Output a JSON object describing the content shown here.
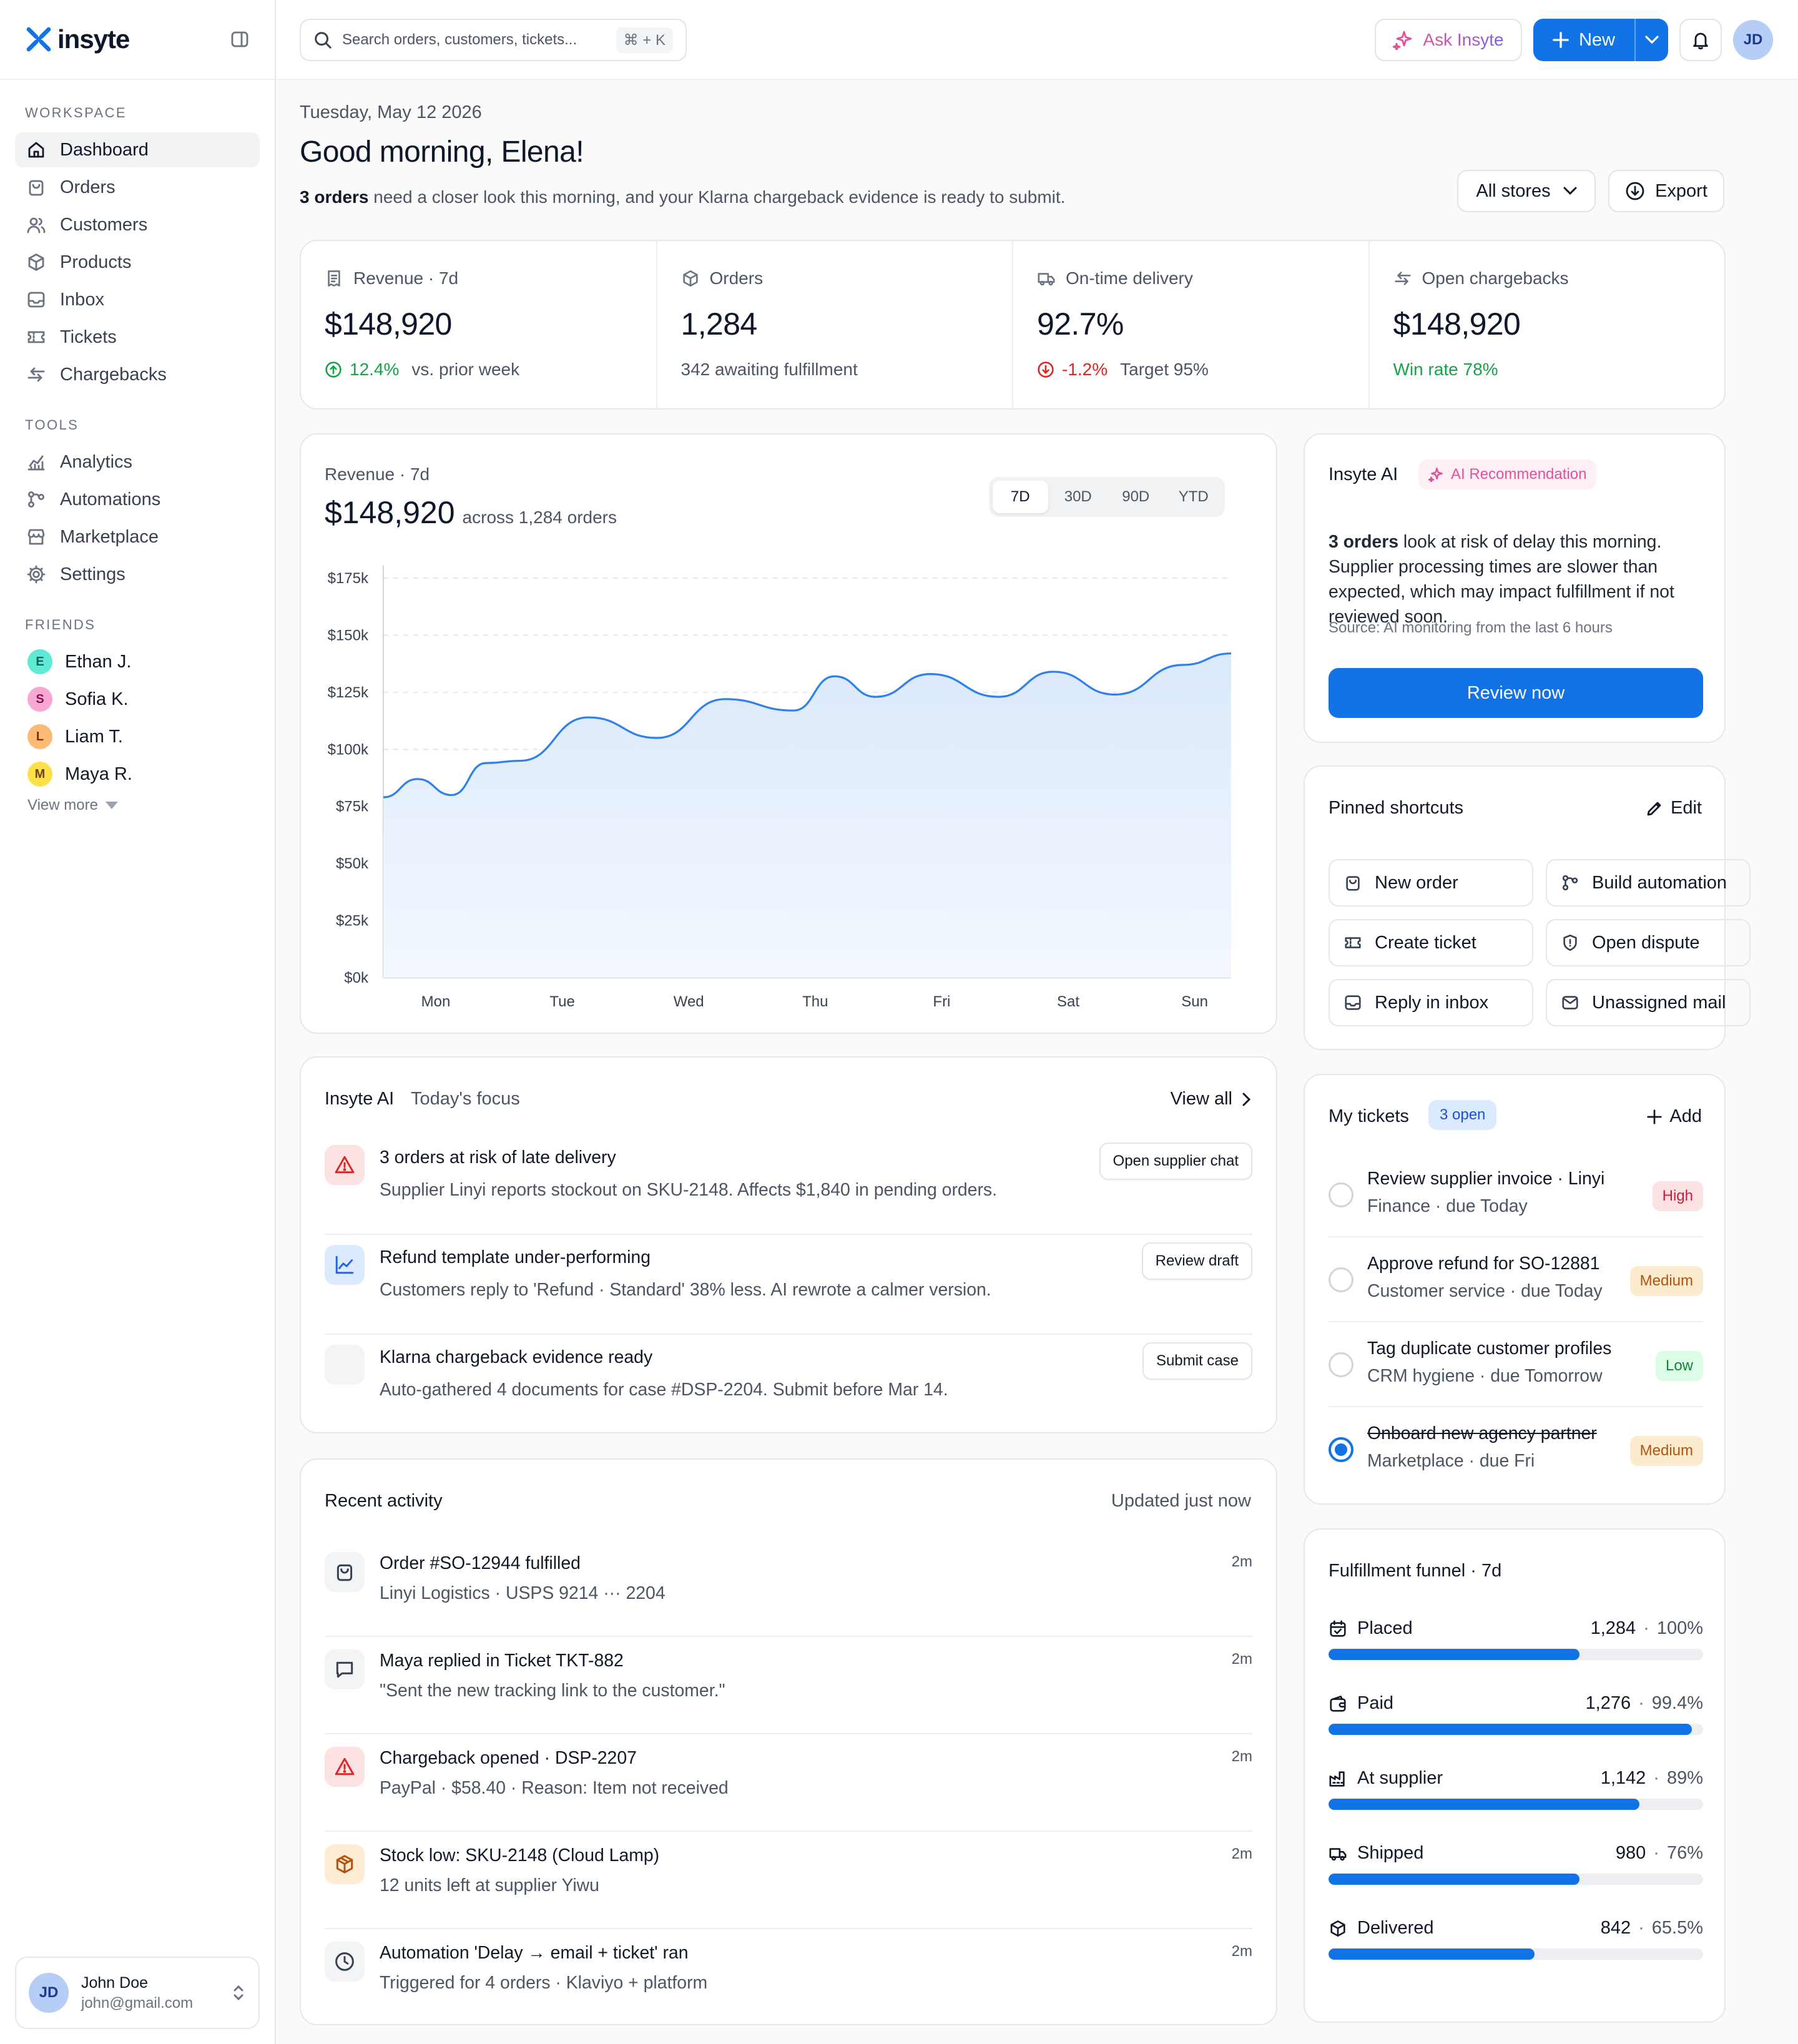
{
  "brand": {
    "name": "insyte"
  },
  "sidebar": {
    "workspace_label": "WORKSPACE",
    "workspace_items": [
      {
        "label": "Dashboard",
        "icon": "home-icon",
        "active": true
      },
      {
        "label": "Orders",
        "icon": "bag-icon"
      },
      {
        "label": "Customers",
        "icon": "users-icon"
      },
      {
        "label": "Products",
        "icon": "box-icon"
      },
      {
        "label": "Inbox",
        "icon": "inbox-icon"
      },
      {
        "label": "Tickets",
        "icon": "ticket-icon"
      },
      {
        "label": "Chargebacks",
        "icon": "return-icon"
      }
    ],
    "tools_label": "TOOLS",
    "tools_items": [
      {
        "label": "Analytics",
        "icon": "analytics-icon"
      },
      {
        "label": "Automations",
        "icon": "workflow-icon"
      },
      {
        "label": "Marketplace",
        "icon": "store-icon"
      },
      {
        "label": "Settings",
        "icon": "gear-icon"
      }
    ],
    "friends_label": "FRIENDS",
    "friends": [
      {
        "initial": "E",
        "name": "Ethan J.",
        "bg": "#5eead4",
        "fg": "#0f5f55"
      },
      {
        "initial": "S",
        "name": "Sofia K.",
        "bg": "#f9a8d4",
        "fg": "#86124f"
      },
      {
        "initial": "L",
        "name": "Liam T.",
        "bg": "#fdba74",
        "fg": "#7c2d12"
      },
      {
        "initial": "M",
        "name": "Maya R.",
        "bg": "#fde047",
        "fg": "#713f12"
      }
    ],
    "view_more": "View more",
    "user": {
      "initials": "JD",
      "name": "John Doe",
      "email": "john@gmail.com"
    }
  },
  "topbar": {
    "search_placeholder": "Search orders, customers, tickets...",
    "shortcut": "⌘ + K",
    "ask_label": "Ask Insyte",
    "new_label": "New",
    "avatar_initials": "JD"
  },
  "header": {
    "date": "Tuesday, May 12 2026",
    "greeting": "Good morning, Elena!",
    "subtitle_bold": "3 orders",
    "subtitle_rest": " need a closer look this morning, and your Klarna chargeback evidence is ready to submit.",
    "stores_label": "All stores",
    "export_label": "Export"
  },
  "kpis": [
    {
      "label": "Revenue · 7d",
      "icon": "receipt-icon",
      "value": "$148,920",
      "delta": "12.4%",
      "delta_dir": "up",
      "note": "vs. prior week"
    },
    {
      "label": "Orders",
      "icon": "box-icon",
      "value": "1,284",
      "note": "342 awaiting fulfillment"
    },
    {
      "label": "On-time delivery",
      "icon": "truck-icon",
      "value": "92.7%",
      "delta": "-1.2%",
      "delta_dir": "down",
      "note": "Target 95%"
    },
    {
      "label": "Open chargebacks",
      "icon": "return-icon",
      "value": "$148,920",
      "highlight": "Win rate 78%"
    }
  ],
  "revenue_chart": {
    "label": "Revenue · 7d",
    "value": "$148,920",
    "value_note": "across 1,284 orders",
    "ranges": [
      "7D",
      "30D",
      "90D",
      "YTD"
    ],
    "active_range": "7D"
  },
  "chart_data": {
    "type": "area",
    "title": "Revenue · 7d",
    "categories": [
      "Mon",
      "Tue",
      "Wed",
      "Thu",
      "Fri",
      "Sat",
      "Sun"
    ],
    "y_tick_labels": [
      "$0k",
      "$25k",
      "$50k",
      "$75k",
      "$100k",
      "$125k",
      "$150k",
      "$175k"
    ],
    "ylim": [
      0,
      175000
    ],
    "grid": true,
    "series": [
      {
        "x": [
          0,
          0.25,
          0.5,
          0.75,
          1,
          1.5,
          2,
          2.5,
          3,
          3.3,
          3.6,
          4,
          4.5,
          4.9,
          5.35,
          5.85,
          6.2
        ],
        "values": [
          79000,
          87000,
          80000,
          94000,
          95000,
          114000,
          105000,
          122000,
          117000,
          132000,
          123000,
          133000,
          123000,
          134000,
          124000,
          137000,
          142000
        ]
      }
    ],
    "color": "#2f80ed",
    "fill": "#e8f1fd"
  },
  "ai_card": {
    "title": "Insyte AI",
    "badge": "AI Recommendation",
    "text_bold": "3 orders",
    "text_rest": " look at risk of delay this morning. Supplier processing times are slower than expected, which may impact fulfillment if not reviewed soon.",
    "source": "Source: AI monitoring from the last 6 hours",
    "button": "Review now"
  },
  "pinned": {
    "title": "Pinned shortcuts",
    "edit": "Edit",
    "items": [
      {
        "label": "New order",
        "icon": "bag-icon"
      },
      {
        "label": "Build automation",
        "icon": "workflow-icon"
      },
      {
        "label": "Create ticket",
        "icon": "ticket-icon"
      },
      {
        "label": "Open dispute",
        "icon": "shield-icon"
      },
      {
        "label": "Reply in inbox",
        "icon": "inbox-icon"
      },
      {
        "label": "Unassigned mail",
        "icon": "mail-icon"
      }
    ]
  },
  "tickets": {
    "title": "My tickets",
    "count": "3 open",
    "add": "Add",
    "items": [
      {
        "title": "Review supplier invoice · Linyi",
        "meta": "Finance · due Today",
        "priority": "High",
        "done": false
      },
      {
        "title": "Approve refund for SO-12881",
        "meta": "Customer service · due Today",
        "priority": "Medium",
        "done": false
      },
      {
        "title": "Tag duplicate customer profiles",
        "meta": "CRM hygiene · due Tomorrow",
        "priority": "Low",
        "done": false
      },
      {
        "title": "Onboard new agency partner",
        "meta": "Marketplace · due Fri",
        "priority": "Medium",
        "done": true
      }
    ],
    "priority_colors": {
      "High": {
        "bg": "#fde2e4",
        "fg": "#c81e3c"
      },
      "Medium": {
        "bg": "#fdebd0",
        "fg": "#b45309"
      },
      "Low": {
        "bg": "#dcfce7",
        "fg": "#15803d"
      }
    }
  },
  "funnel": {
    "title": "Fulfillment funnel · 7d",
    "stages": [
      {
        "label": "Placed",
        "icon": "calendar-check-icon",
        "count": "1,284",
        "pct": "100%",
        "fill_fraction": 0.67
      },
      {
        "label": "Paid",
        "icon": "wallet-icon",
        "count": "1,276",
        "pct": "99.4%",
        "fill_fraction": 0.97
      },
      {
        "label": "At supplier",
        "icon": "factory-icon",
        "count": "1,142",
        "pct": "89%",
        "fill_fraction": 0.83
      },
      {
        "label": "Shipped",
        "icon": "truck-icon",
        "count": "980",
        "pct": "76%",
        "fill_fraction": 0.67
      },
      {
        "label": "Delivered",
        "icon": "box-icon",
        "count": "842",
        "pct": "65.5%",
        "fill_fraction": 0.55
      }
    ]
  },
  "focus": {
    "title": "Insyte AI",
    "subtitle": "Today's focus",
    "view_all": "View all",
    "items": [
      {
        "icon": "warning-icon",
        "tone": "red",
        "title": "3 orders at risk of late delivery",
        "desc": "Supplier Linyi reports stockout on SKU-2148. Affects $1,840 in pending orders.",
        "action": "Open supplier chat"
      },
      {
        "icon": "trend-icon",
        "tone": "blue",
        "title": "Refund template under-performing",
        "desc": "Customers reply to 'Refund · Standard' 38% less. AI rewrote a calmer version.",
        "action": "Review draft"
      },
      {
        "icon": "blank-icon",
        "tone": "gray",
        "title": "Klarna chargeback evidence ready",
        "desc": "Auto-gathered 4 documents for case #DSP-2204. Submit before Mar 14.",
        "action": "Submit case"
      }
    ]
  },
  "activity": {
    "title": "Recent activity",
    "updated": "Updated just now",
    "items": [
      {
        "icon": "bag-icon",
        "tone": "gray",
        "title": "Order #SO-12944 fulfilled",
        "desc": "Linyi Logistics · USPS 9214 ··· 2204",
        "time": "2m"
      },
      {
        "icon": "chat-icon",
        "tone": "gray",
        "title": "Maya replied in Ticket TKT-882",
        "desc": "\"Sent the new tracking link to the customer.\"",
        "time": "2m"
      },
      {
        "icon": "warning-icon",
        "tone": "red",
        "title": "Chargeback opened · DSP-2207",
        "desc": "PayPal · $58.40 · Reason: Item not received",
        "time": "2m"
      },
      {
        "icon": "package-icon",
        "tone": "amber",
        "title": "Stock low: SKU-2148 (Cloud Lamp)",
        "desc": "12 units left at supplier Yiwu",
        "time": "2m"
      },
      {
        "icon": "clock-icon",
        "tone": "gray",
        "title": "Automation 'Delay → email + ticket' ran",
        "desc": "Triggered for 4 orders · Klaviyo + platform",
        "time": "2m"
      }
    ]
  }
}
